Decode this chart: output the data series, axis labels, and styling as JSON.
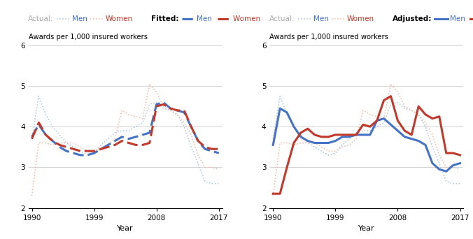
{
  "years": [
    1990,
    1991,
    1992,
    1993,
    1994,
    1995,
    1996,
    1997,
    1998,
    1999,
    2000,
    2001,
    2002,
    2003,
    2004,
    2005,
    2006,
    2007,
    2008,
    2009,
    2010,
    2011,
    2012,
    2013,
    2014,
    2015,
    2016,
    2017
  ],
  "actual_men": [
    3.7,
    4.75,
    4.3,
    4.0,
    3.8,
    3.6,
    3.5,
    3.4,
    3.3,
    3.35,
    3.55,
    3.7,
    3.85,
    3.9,
    3.9,
    4.0,
    4.1,
    4.55,
    4.6,
    4.45,
    4.4,
    4.3,
    4.0,
    3.5,
    3.1,
    2.65,
    2.6,
    2.6
  ],
  "actual_women": [
    2.3,
    3.6,
    3.6,
    3.55,
    3.6,
    3.6,
    3.6,
    3.5,
    3.4,
    3.4,
    3.5,
    3.55,
    3.7,
    4.4,
    4.3,
    4.25,
    4.2,
    5.05,
    4.85,
    4.5,
    4.4,
    4.3,
    4.1,
    3.8,
    3.3,
    3.0,
    3.0,
    2.95
  ],
  "fitted_men": [
    3.75,
    4.05,
    3.8,
    3.65,
    3.5,
    3.4,
    3.35,
    3.3,
    3.3,
    3.35,
    3.45,
    3.55,
    3.65,
    3.75,
    3.7,
    3.75,
    3.8,
    3.85,
    4.55,
    4.6,
    4.45,
    4.4,
    4.35,
    4.0,
    3.65,
    3.45,
    3.4,
    3.35
  ],
  "fitted_women": [
    3.7,
    4.1,
    3.8,
    3.65,
    3.55,
    3.5,
    3.45,
    3.4,
    3.4,
    3.4,
    3.45,
    3.5,
    3.55,
    3.65,
    3.6,
    3.55,
    3.55,
    3.6,
    4.5,
    4.55,
    4.45,
    4.4,
    4.4,
    4.0,
    3.65,
    3.5,
    3.45,
    3.45
  ],
  "adjusted_men": [
    3.55,
    4.45,
    4.35,
    4.0,
    3.75,
    3.65,
    3.6,
    3.6,
    3.6,
    3.65,
    3.75,
    3.75,
    3.8,
    3.8,
    3.8,
    4.15,
    4.2,
    4.05,
    3.9,
    3.75,
    3.7,
    3.65,
    3.55,
    3.1,
    2.95,
    2.9,
    3.05,
    3.1
  ],
  "adjusted_women": [
    2.35,
    2.35,
    3.0,
    3.6,
    3.85,
    3.95,
    3.8,
    3.75,
    3.75,
    3.8,
    3.8,
    3.8,
    3.8,
    4.05,
    4.0,
    4.15,
    4.65,
    4.75,
    4.15,
    3.9,
    3.8,
    4.5,
    4.3,
    4.2,
    4.25,
    3.35,
    3.35,
    3.3
  ],
  "color_blue_actual": "#a8c4e0",
  "color_red_actual": "#f0b8a8",
  "color_blue_fitted": "#4472c4",
  "color_red_fitted": "#c0392b",
  "color_blue_adj": "#4472c4",
  "color_red_adj": "#c0392b",
  "ylabel": "Awards per 1,000 insured workers",
  "xlabel": "Year",
  "ylim": [
    2,
    6
  ],
  "yticks": [
    2,
    3,
    4,
    5,
    6
  ],
  "xticks": [
    1990,
    1999,
    2008,
    2017
  ],
  "legend_actual_gray": "#aaaaaa",
  "legend_fitted_black": "#000000"
}
